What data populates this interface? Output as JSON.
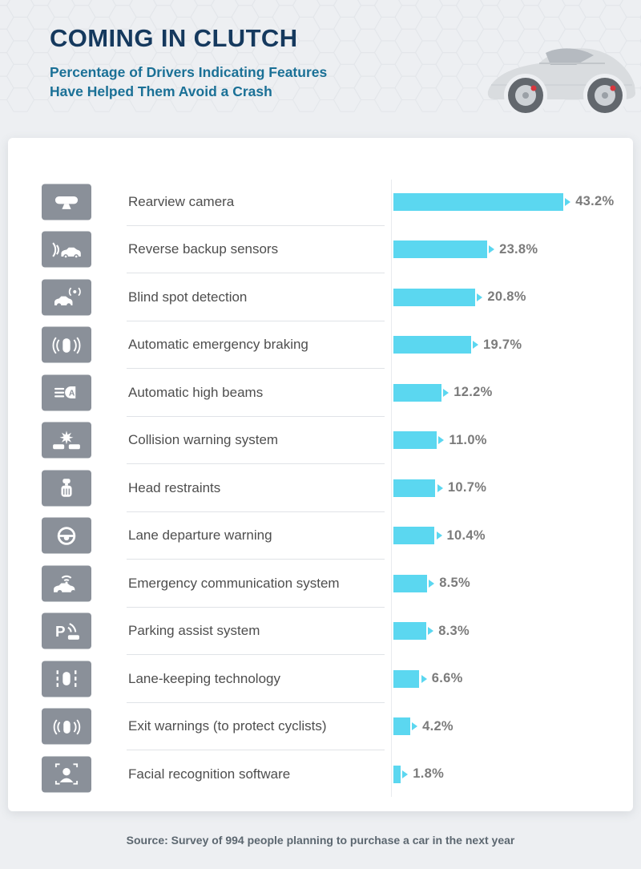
{
  "header": {
    "title": "COMING IN CLUTCH",
    "subtitle_line1": "Percentage of Drivers Indicating Features",
    "subtitle_line2": "Have Helped Them Avoid a Crash"
  },
  "chart_data": {
    "type": "bar",
    "orientation": "horizontal",
    "title": "COMING IN CLUTCH",
    "subtitle": "Percentage of Drivers Indicating Features Have Helped Them Avoid a Crash",
    "categories": [
      "Rearview camera",
      "Reverse backup sensors",
      "Blind spot detection",
      "Automatic emergency braking",
      "Automatic high beams",
      "Collision warning system",
      "Head restraints",
      "Lane departure warning",
      "Emergency communication system",
      "Parking assist system",
      "Lane-keeping technology",
      "Exit warnings (to protect cyclists)",
      "Facial recognition software"
    ],
    "values": [
      43.2,
      23.8,
      20.8,
      19.7,
      12.2,
      11.0,
      10.7,
      10.4,
      8.5,
      8.3,
      6.6,
      4.2,
      1.8
    ],
    "value_labels": [
      "43.2%",
      "23.8%",
      "20.8%",
      "19.7%",
      "12.2%",
      "11.0%",
      "10.7%",
      "10.4%",
      "8.5%",
      "8.3%",
      "6.6%",
      "4.2%",
      "1.8%"
    ],
    "icons": [
      "rearview-camera-icon",
      "reverse-backup-sensors-icon",
      "blind-spot-detection-icon",
      "automatic-emergency-braking-icon",
      "automatic-high-beams-icon",
      "collision-warning-icon",
      "head-restraints-icon",
      "lane-departure-warning-icon",
      "emergency-communication-icon",
      "parking-assist-icon",
      "lane-keeping-icon",
      "exit-warning-icon",
      "facial-recognition-icon"
    ],
    "xlabel": "",
    "ylabel": "",
    "xlim": [
      0,
      45
    ],
    "grid": false,
    "legend": false,
    "bar_color": "#5BD7F0"
  },
  "footer": {
    "source": "Source: Survey of 994 people planning to purchase a car in the next year"
  },
  "colors": {
    "title": "#15395E",
    "subtitle": "#1A7096",
    "bar": "#5BD7F0",
    "icon_box": "#8A9099",
    "percent_label": "#7B7B7B",
    "brake_caliper_red": "#D8363D"
  }
}
